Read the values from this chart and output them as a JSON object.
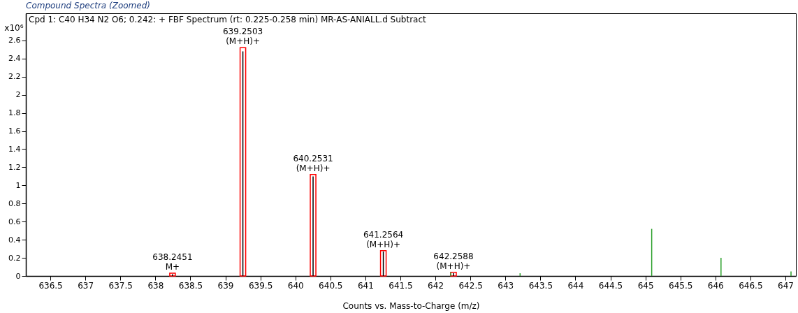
{
  "chart_data": {
    "type": "bar",
    "title": "Compound Spectra (Zoomed)",
    "xlabel": "Counts vs. Mass-to-Charge (m/z)",
    "ylabel": "x10⁶",
    "series": [
      {
        "color": "#ff0000",
        "x": [
          638.2451,
          639.2503,
          640.2531,
          641.2564,
          642.2588
        ],
        "values": [
          0.03,
          2.52,
          1.12,
          0.28,
          0.04
        ]
      },
      {
        "color": "#000000",
        "x": [
          638.2451,
          639.2503,
          640.2531,
          641.2564,
          642.2588
        ],
        "values": [
          0.02,
          2.48,
          1.1,
          0.27,
          0.03
        ]
      },
      {
        "color": "#2ca02c",
        "x": [
          642.22,
          643.21,
          645.09,
          646.08,
          647.08
        ],
        "values": [
          0.04,
          0.03,
          0.52,
          0.2,
          0.05
        ]
      }
    ],
    "xlim": [
      636.2,
      647.1
    ],
    "ylim": [
      0,
      2.9
    ],
    "xticks": [
      636.5,
      637,
      637.5,
      638,
      638.5,
      639,
      639.5,
      640,
      640.5,
      641,
      641.5,
      642,
      642.5,
      643,
      643.5,
      644,
      644.5,
      645,
      645.5,
      646,
      646.5,
      647
    ],
    "yticks": [
      0,
      0.2,
      0.4,
      0.6,
      0.8,
      1,
      1.2,
      1.4,
      1.6,
      1.8,
      2,
      2.2,
      2.4,
      2.6
    ],
    "annotations": [
      "Cpd 1: C40 H34 N2 O6; 0.242: + FBF Spectrum (rt: 0.225-0.258 min) MR-AS-ANIALL.d  Subtract",
      {
        "text": "638.2451\nM+",
        "x": 638.2451,
        "y": 0.03
      },
      {
        "text": "639.2503\n(M+H)+",
        "x": 639.2503,
        "y": 2.52
      },
      {
        "text": "640.2531\n(M+H)+",
        "x": 640.2531,
        "y": 1.12
      },
      {
        "text": "641.2564\n(M+H)+",
        "x": 641.2564,
        "y": 0.28
      },
      {
        "text": "642.2588\n(M+H)+",
        "x": 642.2588,
        "y": 0.04
      }
    ],
    "grid": false
  }
}
